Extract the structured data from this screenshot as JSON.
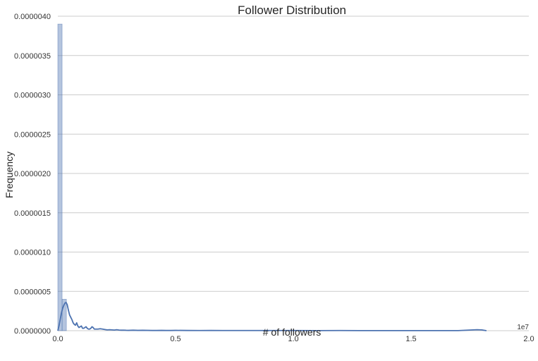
{
  "chart_data": {
    "type": "bar",
    "title": "Follower Distribution",
    "xlabel": "# of followers",
    "ylabel": "Frequency",
    "x_offset_label": "1e7",
    "xlim": [
      0,
      20000000
    ],
    "ylim": [
      0,
      4e-06
    ],
    "grid": true,
    "colors": {
      "bars": "#4c72b0",
      "kde": "#4c72b0",
      "grid": "#cccccc"
    },
    "x_ticks": [
      {
        "value": 0,
        "label": "0.0"
      },
      {
        "value": 5000000,
        "label": "0.5"
      },
      {
        "value": 10000000,
        "label": "1.0"
      },
      {
        "value": 15000000,
        "label": "1.5"
      },
      {
        "value": 20000000,
        "label": "2.0"
      }
    ],
    "y_ticks": [
      {
        "value": 0,
        "label": "0.0000000"
      },
      {
        "value": 5e-07,
        "label": "0.0000005"
      },
      {
        "value": 1e-06,
        "label": "0.0000010"
      },
      {
        "value": 1.5e-06,
        "label": "0.0000015"
      },
      {
        "value": 2e-06,
        "label": "0.0000020"
      },
      {
        "value": 2.5e-06,
        "label": "0.0000025"
      },
      {
        "value": 3e-06,
        "label": "0.0000030"
      },
      {
        "value": 3.5e-06,
        "label": "0.0000035"
      },
      {
        "value": 4e-06,
        "label": "0.0000040"
      }
    ],
    "histogram": {
      "bin_edges": [
        0,
        182000,
        364000
      ],
      "values": [
        3.9e-06,
        4e-07
      ]
    },
    "kde": {
      "x": [
        0,
        50000,
        100000,
        150000,
        200000,
        250000,
        300000,
        350000,
        400000,
        450000,
        500000,
        550000,
        600000,
        650000,
        700000,
        750000,
        800000,
        850000,
        900000,
        950000,
        1000000,
        1050000,
        1100000,
        1150000,
        1200000,
        1250000,
        1300000,
        1350000,
        1400000,
        1450000,
        1500000,
        1550000,
        1600000,
        1700000,
        1800000,
        1900000,
        2000000,
        2100000,
        2200000,
        2300000,
        2400000,
        2500000,
        2600000,
        2700000,
        2800000,
        2900000,
        3000000,
        3200000,
        3400000,
        3600000,
        3800000,
        4000000,
        4200000,
        4400000,
        4600000,
        4800000,
        5000000,
        5500000,
        6000000,
        6500000,
        7000000,
        7500000,
        8000000,
        9000000,
        10000000,
        11000000,
        12000000,
        13000000,
        14000000,
        15000000,
        16000000,
        17000000,
        17800000,
        18000000,
        18200000
      ],
      "y": [
        0.0,
        6e-08,
        1.4e-07,
        2.2e-07,
        2.8e-07,
        3.2e-07,
        3.5e-07,
        3.6e-07,
        3.3e-07,
        2.6e-07,
        2e-07,
        1.7e-07,
        1.4e-07,
        1e-07,
        8e-08,
        7e-08,
        1e-07,
        6e-08,
        4e-08,
        5e-08,
        6e-08,
        3e-08,
        3e-08,
        4e-08,
        5e-08,
        3e-08,
        2e-08,
        2e-08,
        3e-08,
        5e-08,
        4e-08,
        2e-08,
        2e-08,
        2e-08,
        2.5e-08,
        2e-08,
        1.5e-08,
        1e-08,
        1.2e-08,
        1e-08,
        8e-09,
        1.2e-08,
        8e-09,
        6e-09,
        7e-09,
        5e-09,
        4e-09,
        6e-09,
        4e-09,
        5e-09,
        4e-09,
        3e-09,
        3e-09,
        4e-09,
        3e-09,
        3e-09,
        4e-09,
        3e-09,
        2e-09,
        3e-09,
        2e-09,
        2e-09,
        2e-09,
        2e-09,
        2e-09,
        1e-09,
        2e-09,
        1e-09,
        1e-09,
        1e-09,
        1e-09,
        1e-09,
        1.2e-08,
        1e-08,
        0.0
      ]
    }
  }
}
